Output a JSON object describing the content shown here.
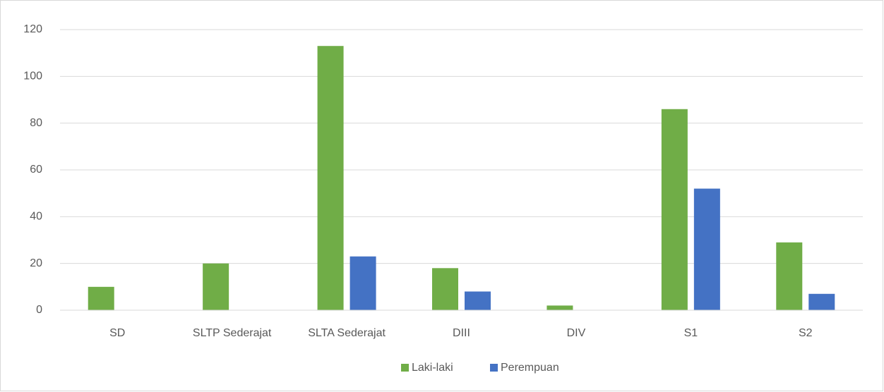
{
  "chart_data": {
    "type": "bar",
    "categories": [
      "SD",
      "SLTP Sederajat",
      "SLTA Sederajat",
      "DIII",
      "DIV",
      "S1",
      "S2"
    ],
    "series": [
      {
        "name": "Laki-laki",
        "color": "#70ad47",
        "values": [
          10,
          20,
          113,
          18,
          2,
          86,
          29
        ]
      },
      {
        "name": "Perempuan",
        "color": "#4472c4",
        "values": [
          0,
          0,
          23,
          8,
          0,
          52,
          7
        ]
      }
    ],
    "ylim": [
      0,
      120
    ],
    "yticks": [
      0,
      20,
      40,
      60,
      80,
      100,
      120
    ],
    "grid": true,
    "legend": "bottom"
  }
}
